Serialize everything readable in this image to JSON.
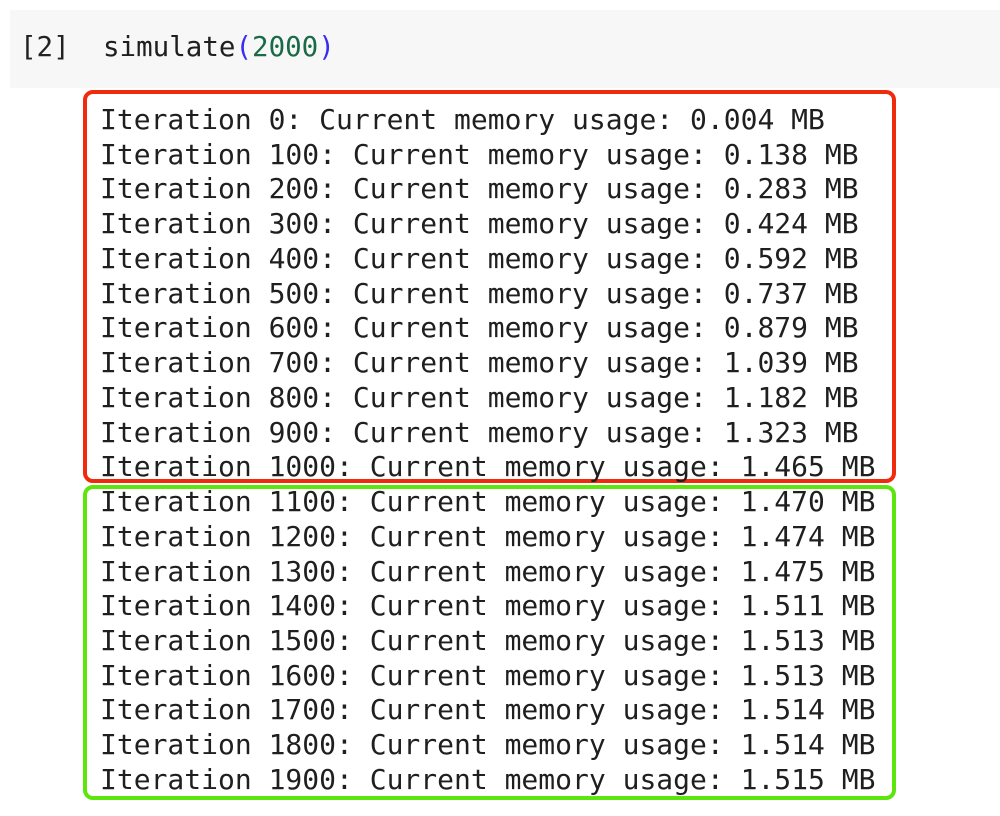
{
  "cell": {
    "prompt": "[2]",
    "code": {
      "func": "simulate",
      "open": "(",
      "arg": "2000",
      "close": ")"
    }
  },
  "highlight_colors": {
    "growth_box": "#f02a0c",
    "plateau_box": "#5de50e"
  },
  "output": {
    "lines": [
      "Iteration 0: Current memory usage: 0.004 MB",
      "Iteration 100: Current memory usage: 0.138 MB",
      "Iteration 200: Current memory usage: 0.283 MB",
      "Iteration 300: Current memory usage: 0.424 MB",
      "Iteration 400: Current memory usage: 0.592 MB",
      "Iteration 500: Current memory usage: 0.737 MB",
      "Iteration 600: Current memory usage: 0.879 MB",
      "Iteration 700: Current memory usage: 1.039 MB",
      "Iteration 800: Current memory usage: 1.182 MB",
      "Iteration 900: Current memory usage: 1.323 MB",
      "Iteration 1000: Current memory usage: 1.465 MB",
      "Iteration 1100: Current memory usage: 1.470 MB",
      "Iteration 1200: Current memory usage: 1.474 MB",
      "Iteration 1300: Current memory usage: 1.475 MB",
      "Iteration 1400: Current memory usage: 1.511 MB",
      "Iteration 1500: Current memory usage: 1.513 MB",
      "Iteration 1600: Current memory usage: 1.513 MB",
      "Iteration 1700: Current memory usage: 1.514 MB",
      "Iteration 1800: Current memory usage: 1.514 MB",
      "Iteration 1900: Current memory usage: 1.515 MB"
    ]
  }
}
